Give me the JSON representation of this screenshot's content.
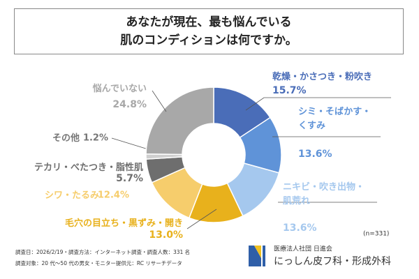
{
  "chart_data": {
    "type": "pie",
    "title": "あなたが現在、最も悩んでいる\n肌のコンディションは何ですか。",
    "categories": [
      "乾燥・かさつき・粉吹き",
      "シミ・そばかす・\nくすみ",
      "ニキビ・吹き出物・\n肌荒れ",
      "毛穴の目立ち・黒ずみ・開き",
      "シワ・たるみ",
      "テカリ・べたつき・脂性肌",
      "その他",
      "悩んでいない"
    ],
    "values": [
      15.7,
      13.6,
      13.6,
      13.0,
      12.4,
      5.7,
      1.2,
      24.8
    ],
    "value_labels": [
      "15.7%",
      "13.6%",
      "13.6%",
      "13.0%",
      "12.4%",
      "5.7%",
      "1.2%",
      "24.8%"
    ],
    "colors": [
      "#4a6db8",
      "#5f93d8",
      "#a5c8ee",
      "#e8b11c",
      "#f6cd6c",
      "#6e6e6e",
      "#cfcfcf",
      "#a8a8a8"
    ],
    "note": "(n=331)",
    "footnotes": [
      "調査日：2026/2/19・調査方法：インターネット調査・調査人数：331 名",
      "調査対象：20 代～50 代の男女・モニター提供元：RC リサーチデータ"
    ],
    "logo": {
      "org": "医療法人社団 日進会",
      "name": "にっしん皮フ科・形成外科"
    }
  }
}
